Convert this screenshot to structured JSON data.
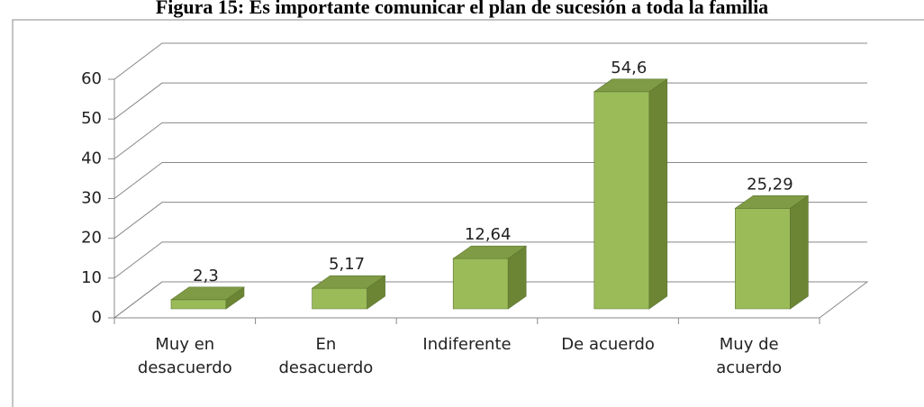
{
  "chart_data": {
    "type": "bar3d",
    "title": "Figura 15: Es importante comunicar el plan de sucesión a toda la familia",
    "categories": [
      "Muy en desacuerdo",
      "En desacuerdo",
      "Indiferente",
      "De acuerdo",
      "Muy de acuerdo"
    ],
    "values": [
      2.3,
      5.17,
      12.64,
      54.6,
      25.29
    ],
    "value_labels": [
      "2,3",
      "5,17",
      "12,64",
      "54,6",
      "25,29"
    ],
    "color": "#9bbb59",
    "ylim": [
      0,
      60
    ],
    "yticks": [
      0,
      10,
      20,
      30,
      40,
      50,
      60
    ],
    "grid": true
  }
}
